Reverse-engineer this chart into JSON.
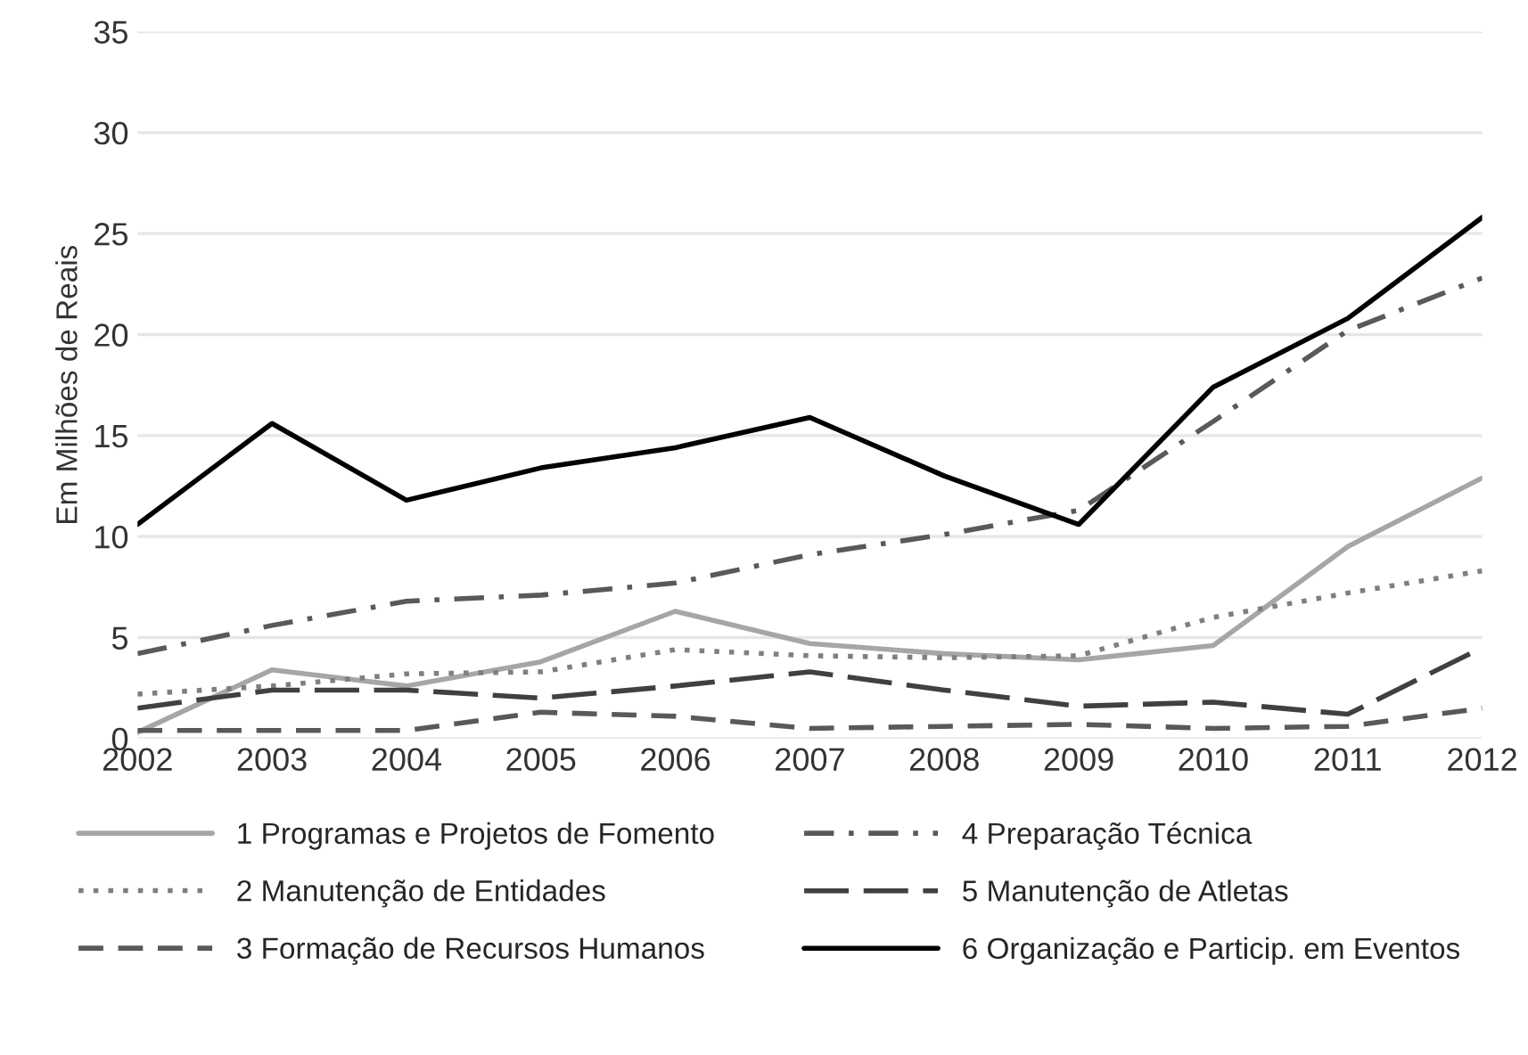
{
  "chart_data": {
    "type": "line",
    "ylabel": "Em Milhões de Reais",
    "categories": [
      "2002",
      "2003",
      "2004",
      "2005",
      "2006",
      "2007",
      "2008",
      "2009",
      "2010",
      "2011",
      "2012"
    ],
    "ylim": [
      0,
      35
    ],
    "yticks": [
      0,
      5,
      10,
      15,
      20,
      25,
      30,
      35
    ],
    "grid": "y",
    "legend": "bottom",
    "marker": "none",
    "series": [
      {
        "name": "1 Programas e Projetos de Fomento",
        "color": "#a6a6a6",
        "line_style": "solid",
        "values": [
          0.3,
          3.4,
          2.6,
          3.8,
          6.3,
          4.7,
          4.2,
          3.9,
          4.6,
          9.5,
          12.9
        ]
      },
      {
        "name": "2 Manutenção de Entidades",
        "color": "#7f7f7f",
        "line_style": "dotted",
        "values": [
          2.2,
          2.6,
          3.2,
          3.3,
          4.4,
          4.1,
          4.0,
          4.1,
          6.0,
          7.2,
          8.3
        ]
      },
      {
        "name": "3 Formação de Recursos Humanos",
        "color": "#595959",
        "line_style": "dashed",
        "values": [
          0.4,
          0.4,
          0.4,
          1.3,
          1.1,
          0.5,
          0.6,
          0.7,
          0.5,
          0.6,
          1.5
        ]
      },
      {
        "name": "4 Preparação Técnica",
        "color": "#595959",
        "line_style": "dashdot",
        "values": [
          4.2,
          5.6,
          6.8,
          7.1,
          7.7,
          9.1,
          10.1,
          11.3,
          15.7,
          20.2,
          22.8
        ]
      },
      {
        "name": "5 Manutenção de Atletas",
        "color": "#404040",
        "line_style": "longdash",
        "values": [
          1.5,
          2.4,
          2.4,
          2.0,
          2.6,
          3.3,
          2.4,
          1.6,
          1.8,
          1.2,
          4.5
        ]
      },
      {
        "name": "6 Organização e Particip. em Eventos",
        "color": "#000000",
        "line_style": "solid",
        "values": [
          10.6,
          15.6,
          11.8,
          13.4,
          14.4,
          15.9,
          13.0,
          10.6,
          17.4,
          20.8,
          25.8
        ]
      }
    ]
  }
}
